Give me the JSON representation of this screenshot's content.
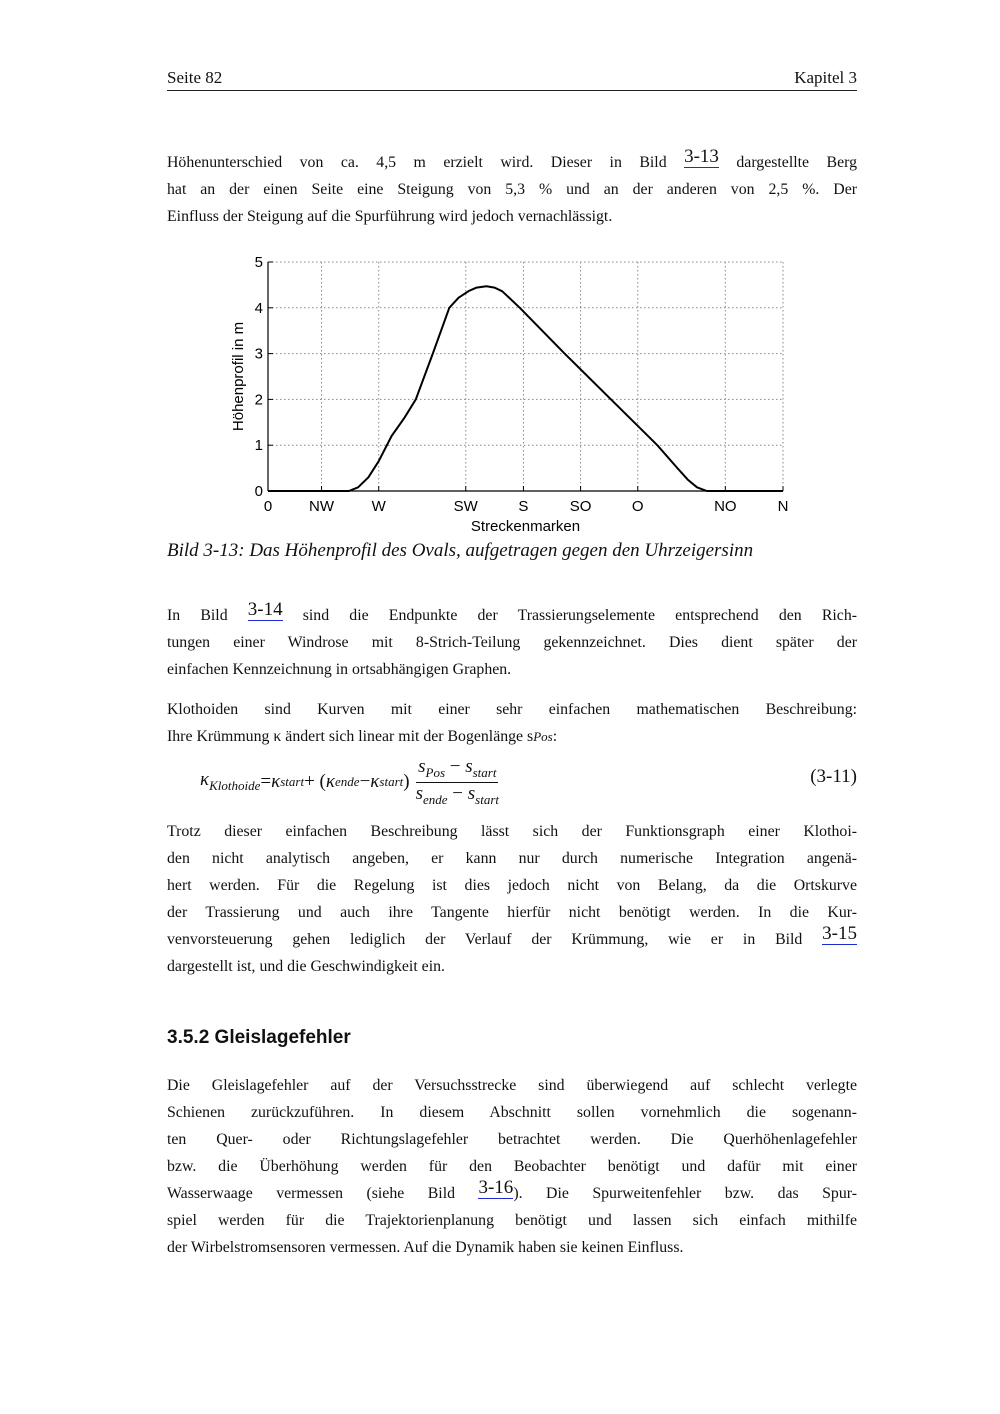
{
  "header": {
    "left": "Seite 82",
    "right": "Kapitel 3"
  },
  "para1": [
    [
      "Höhenunterschied von ca. 4,5 m erzielt wird. Dieser in Bild ",
      {
        "link": "3-13"
      },
      " dargestellte Berg"
    ],
    [
      "hat an der einen Seite eine Steigung von 5,3 % und an der anderen von 2,5 %. Der"
    ],
    [
      "Einfluss der Steigung auf die Spurführung wird jedoch vernachlässigt."
    ]
  ],
  "chart_data": {
    "type": "line",
    "xlabel": "Streckenmarken",
    "ylabel": "Höhenprofil in m",
    "ylim": [
      0,
      5
    ],
    "yticks": [
      "0",
      "1",
      "2",
      "3",
      "4",
      "5"
    ],
    "xticks": [
      {
        "label": "0",
        "x": 0
      },
      {
        "label": "NW",
        "x": 10.4
      },
      {
        "label": "W",
        "x": 21.5
      },
      {
        "label": "SW",
        "x": 38.4
      },
      {
        "label": "S",
        "x": 49.6
      },
      {
        "label": "SO",
        "x": 60.7
      },
      {
        "label": "O",
        "x": 71.8
      },
      {
        "label": "NO",
        "x": 88.8
      },
      {
        "label": "N",
        "x": 100
      }
    ],
    "grid": true,
    "points": [
      [
        0,
        0
      ],
      [
        15.7,
        0
      ],
      [
        17.5,
        0.08
      ],
      [
        19.5,
        0.3
      ],
      [
        21.5,
        0.65
      ],
      [
        24,
        1.2
      ],
      [
        26.5,
        1.6
      ],
      [
        28.7,
        2.0
      ],
      [
        32,
        3.0
      ],
      [
        35.2,
        4.0
      ],
      [
        37,
        4.22
      ],
      [
        39,
        4.37
      ],
      [
        40.5,
        4.44
      ],
      [
        42.4,
        4.47
      ],
      [
        44,
        4.44
      ],
      [
        45.5,
        4.36
      ],
      [
        47,
        4.2
      ],
      [
        48.9,
        4.0
      ],
      [
        57.6,
        3.0
      ],
      [
        66.6,
        2.0
      ],
      [
        75.6,
        1.0
      ],
      [
        79.5,
        0.5
      ],
      [
        81.5,
        0.25
      ],
      [
        83.3,
        0.08
      ],
      [
        85.2,
        0
      ],
      [
        100,
        0
      ]
    ],
    "color": "#000000"
  },
  "caption": "Bild 3-13: Das Höhenprofil des Ovals, aufgetragen gegen den Uhrzeigersinn",
  "para2": [
    [
      "In Bild ",
      {
        "link": "3-14"
      },
      " sind die Endpunkte der Trassierungselemente entsprechend den Rich-"
    ],
    [
      "tungen einer Windrose mit 8-Strich-Teilung gekennzeichnet. Dies dient später der"
    ],
    [
      "einfachen Kennzeichnung in ortsabhängigen Graphen."
    ]
  ],
  "para3": [
    [
      "Klothoiden sind Kurven mit einer sehr einfachen mathematischen Beschreibung:"
    ],
    [
      "Ihre Krümmung κ ändert sich linear mit der Bogenlänge s",
      {
        "sub": "Pos"
      },
      ":"
    ]
  ],
  "equation": {
    "kappa": "κ",
    "klothoide": "Klothoide",
    "eq": " = ",
    "start": "start",
    "plus": " + (",
    "ende": "ende",
    "minus": " − ",
    "close": ")",
    "s": "s",
    "pos": "Pos",
    "number": "(3-11)"
  },
  "para4": [
    [
      "Trotz dieser einfachen Beschreibung lässt sich der Funktionsgraph einer Klothoi-"
    ],
    [
      "den nicht analytisch angeben, er kann nur durch numerische Integration angenä-"
    ],
    [
      "hert werden. Für die Regelung ist dies jedoch nicht von Belang, da die Ortskurve"
    ],
    [
      "der Trassierung und auch ihre Tangente hierfür nicht benötigt werden. In die Kur-"
    ],
    [
      "venvorsteuerung gehen lediglich der Verlauf der Krümmung, wie er in Bild ",
      {
        "link": "3-15"
      }
    ],
    [
      "dargestellt ist, und die Geschwindigkeit ein."
    ]
  ],
  "heading": "3.5.2 Gleislagefehler",
  "para5": [
    [
      "Die Gleislagefehler auf der Versuchsstrecke sind überwiegend auf schlecht verlegte"
    ],
    [
      "Schienen zurückzuführen. In diesem Abschnitt sollen vornehmlich die sogenann-"
    ],
    [
      "ten Quer- oder Richtungslagefehler betrachtet werden. Die Querhöhenlagefehler"
    ],
    [
      "bzw. die Überhöhung werden für den Beobachter benötigt und dafür mit einer"
    ],
    [
      "Wasserwaage vermessen (siehe Bild ",
      {
        "link": "3-16"
      },
      "). Die Spurweitenfehler bzw. das Spur-"
    ],
    [
      "spiel werden für die Trajektorienplanung benötigt und lassen sich einfach mithilfe"
    ],
    [
      "der Wirbelstromsensoren vermessen. Auf die Dynamik haben sie keinen Einfluss."
    ]
  ],
  "link_color": "#1a2bd0"
}
